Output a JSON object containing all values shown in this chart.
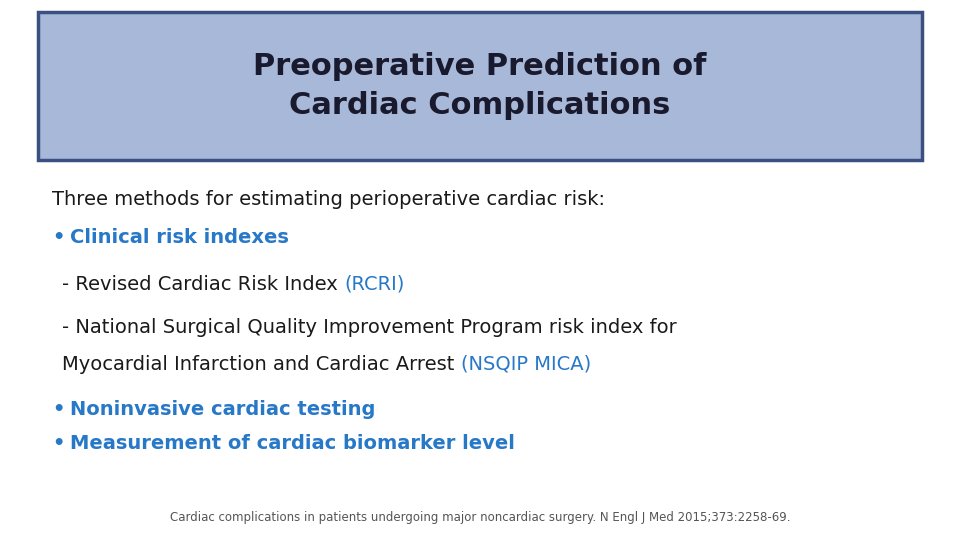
{
  "title_line1": "Preoperative Prediction of",
  "title_line2": "Cardiac Complications",
  "title_bg_color": "#a8b8d8",
  "title_border_color": "#3a5080",
  "title_text_color": "#1a1a2e",
  "background_color": "#ffffff",
  "body_text_color": "#1a1a1a",
  "blue_text_color": "#2878c8",
  "intro_text": "Three methods for estimating perioperative cardiac risk:",
  "sub1_black": "- Revised Cardiac Risk Index ",
  "sub1_blue": "(RCRI)",
  "line2_1": "- National Surgical Quality Improvement Program risk index for",
  "line2_2": "Myocardial Infarction and Cardiac Arrest ",
  "sub2_blue": "(NSQIP MICA)",
  "bullet2_blue": "Noninvasive cardiac testing",
  "bullet3_blue": "Measurement of cardiac biomarker level",
  "footnote": "Cardiac complications in patients undergoing major noncardiac surgery. N Engl J Med 2015;373:2258-69.",
  "footnote_color": "#555555",
  "title_fontsize": 22,
  "body_fontsize": 14,
  "bullet_fontsize": 14,
  "footnote_fontsize": 8.5
}
